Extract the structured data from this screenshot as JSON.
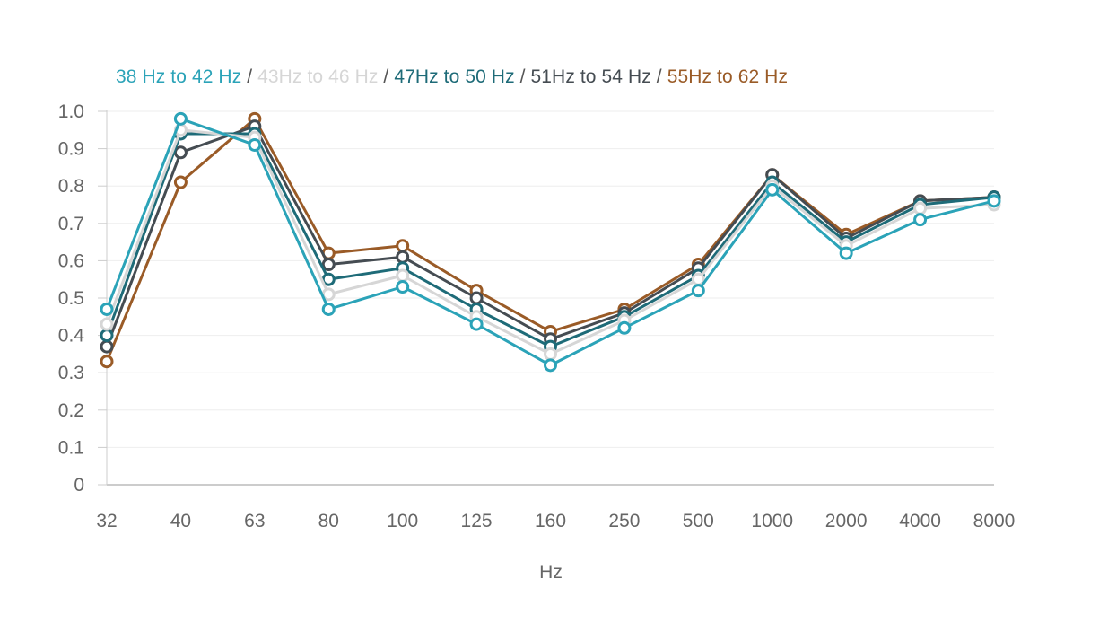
{
  "chart_data": {
    "type": "line",
    "categories": [
      "32",
      "40",
      "63",
      "80",
      "100",
      "125",
      "160",
      "250",
      "500",
      "1000",
      "2000",
      "4000",
      "8000"
    ],
    "xlabel": "Hz",
    "ylabel": "",
    "ylim": [
      0,
      1.0
    ],
    "yticks": [
      "0",
      "0.1",
      "0.2",
      "0.3",
      "0.4",
      "0.5",
      "0.6",
      "0.7",
      "0.8",
      "0.9",
      "1.0"
    ],
    "grid": true,
    "legend_separator": " / ",
    "series": [
      {
        "name": "38 Hz to 42 Hz",
        "color": "#2ba3b8",
        "values": [
          0.47,
          0.98,
          0.91,
          0.47,
          0.53,
          0.43,
          0.32,
          0.42,
          0.52,
          0.79,
          0.62,
          0.71,
          0.76
        ]
      },
      {
        "name": "43Hz to 46 Hz",
        "color": "#d6d6d6",
        "values": [
          0.43,
          0.95,
          0.93,
          0.51,
          0.56,
          0.45,
          0.35,
          0.44,
          0.55,
          0.8,
          0.64,
          0.74,
          0.75
        ]
      },
      {
        "name": "47Hz to 50 Hz",
        "color": "#1e6b78",
        "values": [
          0.4,
          0.94,
          0.94,
          0.55,
          0.58,
          0.47,
          0.37,
          0.45,
          0.56,
          0.81,
          0.65,
          0.75,
          0.77
        ]
      },
      {
        "name": "51Hz to 54 Hz",
        "color": "#454c52",
        "values": [
          0.37,
          0.89,
          0.96,
          0.59,
          0.61,
          0.5,
          0.39,
          0.46,
          0.58,
          0.83,
          0.66,
          0.76,
          0.77
        ]
      },
      {
        "name": "55Hz to 62 Hz",
        "color": "#9a5b27",
        "values": [
          0.33,
          0.81,
          0.98,
          0.62,
          0.64,
          0.52,
          0.41,
          0.47,
          0.59,
          0.83,
          0.67,
          0.76,
          0.77
        ]
      }
    ]
  }
}
